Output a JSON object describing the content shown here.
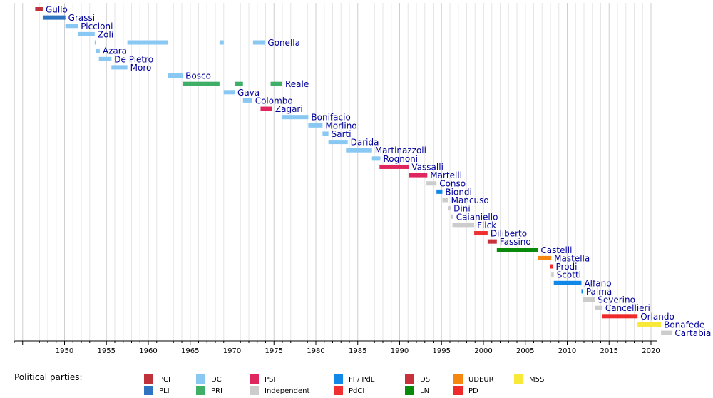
{
  "chart_data": {
    "type": "bar",
    "orientation": "horizontal-timeline",
    "xlim": [
      1944.0,
      2022.5
    ],
    "x_ticks": [
      1950,
      1955,
      1960,
      1965,
      1970,
      1975,
      1980,
      1985,
      1990,
      1995,
      2000,
      2005,
      2010,
      2015,
      2020
    ],
    "grid": "vertical yearly lines",
    "legend_title": "Political parties:",
    "parties": [
      {
        "key": "PCI",
        "name": "PCI",
        "color": "#c0323a"
      },
      {
        "key": "PLI",
        "name": "PLI",
        "color": "#2e74c0"
      },
      {
        "key": "DC",
        "name": "DC",
        "color": "#88c8f2"
      },
      {
        "key": "PRI",
        "name": "PRI",
        "color": "#3fae67"
      },
      {
        "key": "PSI",
        "name": "PSI",
        "color": "#e0265e"
      },
      {
        "key": "IND",
        "name": "Independent",
        "color": "#cccccc"
      },
      {
        "key": "FI",
        "name": "FI / PdL",
        "color": "#1188e8"
      },
      {
        "key": "PdCI",
        "name": "PdCI",
        "color": "#f03030"
      },
      {
        "key": "DS",
        "name": "DS",
        "color": "#c8303c"
      },
      {
        "key": "LN",
        "name": "LN",
        "color": "#0a8a0a"
      },
      {
        "key": "UDEUR",
        "name": "UDEUR",
        "color": "#f5870f"
      },
      {
        "key": "PD",
        "name": "PD",
        "color": "#ee2a2a"
      },
      {
        "key": "M5S",
        "name": "M5S",
        "color": "#f8e838"
      }
    ],
    "ministers": [
      {
        "name": "Gullo",
        "terms": [
          {
            "start": 1946.5,
            "end": 1947.4,
            "party": "PCI"
          }
        ]
      },
      {
        "name": "Grassi",
        "terms": [
          {
            "start": 1947.4,
            "end": 1950.1,
            "party": "PLI"
          }
        ]
      },
      {
        "name": "Piccioni",
        "terms": [
          {
            "start": 1950.1,
            "end": 1951.6,
            "party": "DC"
          }
        ]
      },
      {
        "name": "Zoli",
        "terms": [
          {
            "start": 1951.6,
            "end": 1953.6,
            "party": "DC"
          }
        ]
      },
      {
        "name": "Gonella",
        "terms": [
          {
            "start": 1953.6,
            "end": 1953.7,
            "party": "DC"
          },
          {
            "start": 1957.5,
            "end": 1962.3,
            "party": "DC"
          },
          {
            "start": 1968.5,
            "end": 1969.0,
            "party": "DC"
          },
          {
            "start": 1972.5,
            "end": 1973.9,
            "party": "DC"
          }
        ]
      },
      {
        "name": "Azara",
        "terms": [
          {
            "start": 1953.7,
            "end": 1954.2,
            "party": "DC"
          }
        ]
      },
      {
        "name": "De Pietro",
        "terms": [
          {
            "start": 1954.1,
            "end": 1955.6,
            "party": "DC"
          }
        ]
      },
      {
        "name": "Moro",
        "terms": [
          {
            "start": 1955.6,
            "end": 1957.5,
            "party": "DC"
          }
        ]
      },
      {
        "name": "Bosco",
        "terms": [
          {
            "start": 1962.3,
            "end": 1964.1,
            "party": "DC"
          }
        ]
      },
      {
        "name": "Reale",
        "terms": [
          {
            "start": 1964.1,
            "end": 1968.5,
            "party": "PRI"
          },
          {
            "start": 1970.3,
            "end": 1971.3,
            "party": "PRI"
          },
          {
            "start": 1974.6,
            "end": 1976.0,
            "party": "PRI"
          }
        ]
      },
      {
        "name": "Gava",
        "terms": [
          {
            "start": 1969.0,
            "end": 1970.3,
            "party": "DC"
          }
        ]
      },
      {
        "name": "Colombo",
        "terms": [
          {
            "start": 1971.3,
            "end": 1972.4,
            "party": "DC"
          }
        ]
      },
      {
        "name": "Zagari",
        "terms": [
          {
            "start": 1973.4,
            "end": 1974.8,
            "party": "PSI"
          }
        ]
      },
      {
        "name": "Bonifacio",
        "terms": [
          {
            "start": 1976.0,
            "end": 1979.1,
            "party": "DC"
          }
        ]
      },
      {
        "name": "Morlino",
        "terms": [
          {
            "start": 1979.1,
            "end": 1980.8,
            "party": "DC"
          }
        ]
      },
      {
        "name": "Sarti",
        "terms": [
          {
            "start": 1980.8,
            "end": 1981.5,
            "party": "DC"
          }
        ]
      },
      {
        "name": "Darida",
        "terms": [
          {
            "start": 1981.5,
            "end": 1983.8,
            "party": "DC"
          }
        ]
      },
      {
        "name": "Martinazzoli",
        "terms": [
          {
            "start": 1983.6,
            "end": 1986.7,
            "party": "DC"
          }
        ]
      },
      {
        "name": "Rognoni",
        "terms": [
          {
            "start": 1986.7,
            "end": 1987.7,
            "party": "DC"
          }
        ]
      },
      {
        "name": "Vassalli",
        "terms": [
          {
            "start": 1987.6,
            "end": 1991.1,
            "party": "PSI"
          }
        ]
      },
      {
        "name": "Martelli",
        "terms": [
          {
            "start": 1991.1,
            "end": 1993.3,
            "party": "PSI"
          }
        ]
      },
      {
        "name": "Conso",
        "terms": [
          {
            "start": 1993.2,
            "end": 1994.4,
            "party": "IND"
          }
        ]
      },
      {
        "name": "Biondi",
        "terms": [
          {
            "start": 1994.4,
            "end": 1995.1,
            "party": "FI"
          }
        ]
      },
      {
        "name": "Mancuso",
        "terms": [
          {
            "start": 1995.1,
            "end": 1995.8,
            "party": "IND"
          }
        ]
      },
      {
        "name": "Dini",
        "terms": [
          {
            "start": 1995.8,
            "end": 1996.1,
            "party": "IND"
          }
        ]
      },
      {
        "name": "Caianiello",
        "terms": [
          {
            "start": 1996.1,
            "end": 1996.4,
            "party": "IND"
          }
        ]
      },
      {
        "name": "Flick",
        "terms": [
          {
            "start": 1996.3,
            "end": 1998.9,
            "party": "IND"
          }
        ]
      },
      {
        "name": "Diliberto",
        "terms": [
          {
            "start": 1998.9,
            "end": 2000.5,
            "party": "PdCI"
          }
        ]
      },
      {
        "name": "Fassino",
        "terms": [
          {
            "start": 2000.5,
            "end": 2001.6,
            "party": "DS"
          }
        ]
      },
      {
        "name": "Castelli",
        "terms": [
          {
            "start": 2001.6,
            "end": 2006.5,
            "party": "LN"
          }
        ]
      },
      {
        "name": "Mastella",
        "terms": [
          {
            "start": 2006.5,
            "end": 2008.1,
            "party": "UDEUR"
          }
        ]
      },
      {
        "name": "Prodi",
        "terms": [
          {
            "start": 2008.0,
            "end": 2008.3,
            "party": "PD"
          }
        ]
      },
      {
        "name": "Scotti",
        "terms": [
          {
            "start": 2008.1,
            "end": 2008.4,
            "party": "IND"
          }
        ]
      },
      {
        "name": "Alfano",
        "terms": [
          {
            "start": 2008.4,
            "end": 2011.7,
            "party": "FI"
          }
        ]
      },
      {
        "name": "Palma",
        "terms": [
          {
            "start": 2011.7,
            "end": 2011.9,
            "party": "FI"
          }
        ]
      },
      {
        "name": "Severino",
        "terms": [
          {
            "start": 2011.9,
            "end": 2013.3,
            "party": "IND"
          }
        ]
      },
      {
        "name": "Cancellieri",
        "terms": [
          {
            "start": 2013.3,
            "end": 2014.2,
            "party": "IND"
          }
        ]
      },
      {
        "name": "Orlando",
        "terms": [
          {
            "start": 2014.2,
            "end": 2018.4,
            "party": "PD"
          }
        ]
      },
      {
        "name": "Bonafede",
        "terms": [
          {
            "start": 2018.4,
            "end": 2021.2,
            "party": "M5S"
          }
        ]
      },
      {
        "name": "Cartabia",
        "terms": [
          {
            "start": 2021.2,
            "end": 2022.5,
            "party": "IND"
          }
        ]
      }
    ]
  }
}
